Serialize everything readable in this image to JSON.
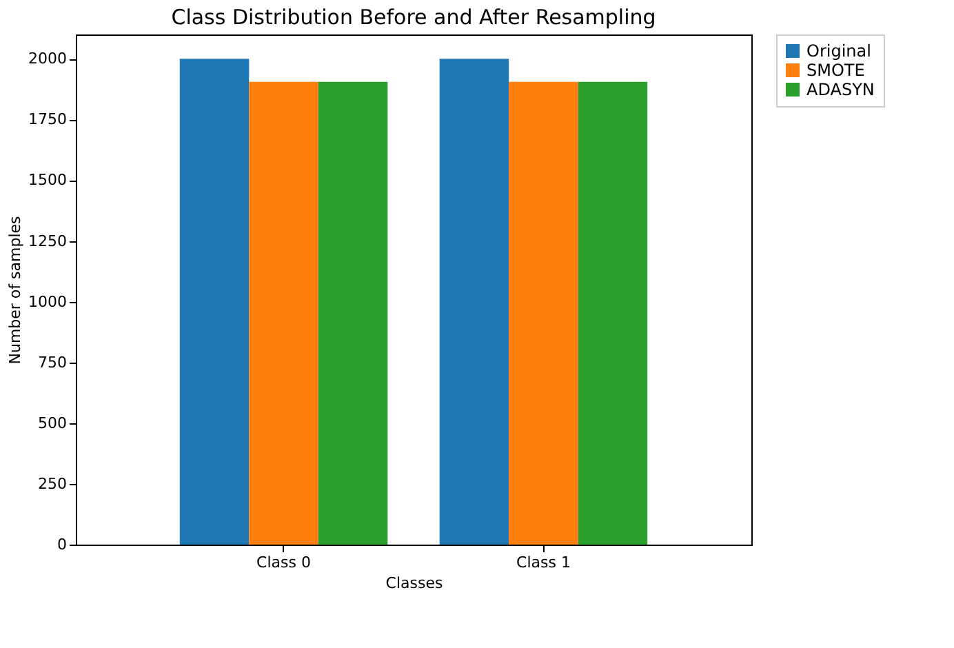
{
  "chart_data": {
    "type": "bar",
    "title": "Class Distribution Before and After Resampling",
    "xlabel": "Classes",
    "ylabel": "Number of samples",
    "categories": [
      "Class 0",
      "Class 1"
    ],
    "series": [
      {
        "name": "Original",
        "color": "#1f77b4",
        "values": [
          2000,
          2000
        ]
      },
      {
        "name": "SMOTE",
        "color": "#ff7f0e",
        "values": [
          1905,
          1905
        ]
      },
      {
        "name": "ADASYN",
        "color": "#2ca02c",
        "values": [
          1905,
          1905
        ]
      }
    ],
    "ylim": [
      0,
      2100
    ],
    "yticks": [
      0,
      250,
      500,
      750,
      1000,
      1250,
      1500,
      1750,
      2000
    ],
    "grid": false,
    "legend": "top right"
  }
}
